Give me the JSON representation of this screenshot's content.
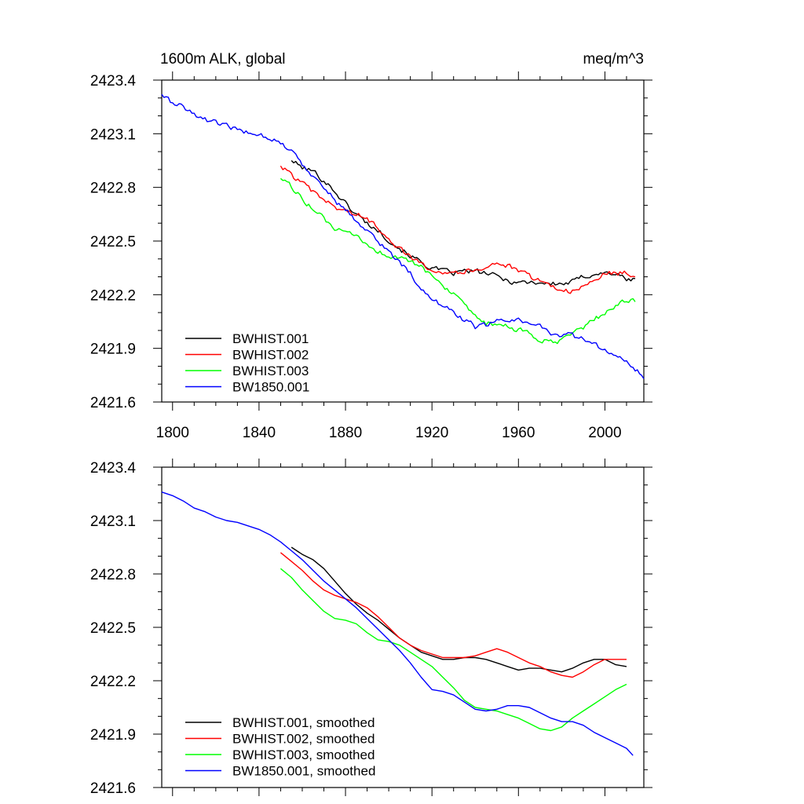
{
  "header": {
    "left_title": "1600m ALK, global",
    "right_title": "meq/m^3"
  },
  "colors": {
    "BWHIST.001": "#000000",
    "BWHIST.002": "#ff0000",
    "BWHIST.003": "#00ff00",
    "BW1850.001": "#0000ff"
  },
  "chart_data": [
    {
      "type": "line",
      "title": "1600m ALK, global",
      "units": "meq/m^3",
      "xlim": [
        1795,
        2018
      ],
      "ylim": [
        2421.6,
        2423.4
      ],
      "x_ticks": [
        1800,
        1840,
        1880,
        1920,
        1960,
        2000
      ],
      "y_ticks": [
        2421.6,
        2421.9,
        2422.2,
        2422.5,
        2422.8,
        2423.1,
        2423.4
      ],
      "y_tick_labels": [
        "2421.6",
        "2421.9",
        "2422.2",
        "2422.5",
        "2422.8",
        "2423.1",
        "2423.4"
      ],
      "x_tick_labels": [
        "1800",
        "1840",
        "1880",
        "1920",
        "1960",
        "2000"
      ],
      "legend_position": "bottom-left",
      "noisy": true,
      "series": [
        {
          "name": "BWHIST.001",
          "color": "#000000",
          "x": [
            1855,
            1860,
            1865,
            1870,
            1875,
            1880,
            1885,
            1890,
            1895,
            1900,
            1905,
            1910,
            1915,
            1920,
            1925,
            1930,
            1935,
            1940,
            1945,
            1950,
            1955,
            1960,
            1965,
            1970,
            1975,
            1980,
            1985,
            1990,
            1995,
            2000,
            2005,
            2010,
            2014
          ],
          "y": [
            2422.95,
            2422.91,
            2422.89,
            2422.84,
            2422.78,
            2422.71,
            2422.65,
            2422.6,
            2422.56,
            2422.51,
            2422.46,
            2422.42,
            2422.38,
            2422.35,
            2422.33,
            2422.32,
            2422.33,
            2422.33,
            2422.32,
            2422.3,
            2422.28,
            2422.27,
            2422.27,
            2422.27,
            2422.26,
            2422.26,
            2422.27,
            2422.3,
            2422.32,
            2422.32,
            2422.32,
            2422.28,
            2422.29
          ]
        },
        {
          "name": "BWHIST.002",
          "color": "#ff0000",
          "x": [
            1850,
            1855,
            1860,
            1865,
            1870,
            1875,
            1880,
            1885,
            1890,
            1895,
            1900,
            1905,
            1910,
            1915,
            1920,
            1925,
            1930,
            1935,
            1940,
            1945,
            1950,
            1955,
            1960,
            1965,
            1970,
            1975,
            1980,
            1985,
            1990,
            1995,
            2000,
            2005,
            2010,
            2014
          ],
          "y": [
            2422.92,
            2422.87,
            2422.82,
            2422.77,
            2422.73,
            2422.69,
            2422.67,
            2422.65,
            2422.62,
            2422.58,
            2422.52,
            2422.46,
            2422.41,
            2422.37,
            2422.35,
            2422.33,
            2422.33,
            2422.33,
            2422.34,
            2422.36,
            2422.38,
            2422.36,
            2422.33,
            2422.3,
            2422.28,
            2422.25,
            2422.23,
            2422.22,
            2422.24,
            2422.28,
            2422.32,
            2422.32,
            2422.32,
            2422.3
          ]
        },
        {
          "name": "BWHIST.003",
          "color": "#00ff00",
          "x": [
            1850,
            1855,
            1860,
            1865,
            1870,
            1875,
            1880,
            1885,
            1890,
            1895,
            1900,
            1905,
            1910,
            1915,
            1920,
            1925,
            1930,
            1935,
            1940,
            1945,
            1950,
            1955,
            1960,
            1965,
            1970,
            1975,
            1980,
            1985,
            1990,
            1995,
            2000,
            2005,
            2010,
            2014
          ],
          "y": [
            2422.85,
            2422.8,
            2422.74,
            2422.68,
            2422.62,
            2422.57,
            2422.54,
            2422.52,
            2422.48,
            2422.44,
            2422.42,
            2422.41,
            2422.38,
            2422.35,
            2422.31,
            2422.26,
            2422.2,
            2422.13,
            2422.07,
            2422.04,
            2422.03,
            2422.02,
            2422.0,
            2421.98,
            2421.95,
            2421.93,
            2421.94,
            2421.98,
            2422.02,
            2422.06,
            2422.1,
            2422.14,
            2422.17,
            2422.16
          ]
        },
        {
          "name": "BW1850.001",
          "color": "#0000ff",
          "x": [
            1795,
            1800,
            1805,
            1810,
            1815,
            1820,
            1825,
            1830,
            1835,
            1840,
            1845,
            1850,
            1855,
            1860,
            1865,
            1870,
            1875,
            1880,
            1885,
            1890,
            1895,
            1900,
            1905,
            1910,
            1915,
            1920,
            1925,
            1930,
            1935,
            1940,
            1945,
            1950,
            1955,
            1960,
            1965,
            1970,
            1975,
            1980,
            1985,
            1990,
            1995,
            2000,
            2005,
            2010,
            2015,
            2018
          ],
          "y": [
            2423.32,
            2423.27,
            2423.25,
            2423.21,
            2423.18,
            2423.16,
            2423.14,
            2423.12,
            2423.11,
            2423.1,
            2423.08,
            2423.05,
            2423.0,
            2422.93,
            2422.87,
            2422.8,
            2422.73,
            2422.67,
            2422.62,
            2422.56,
            2422.5,
            2422.44,
            2422.38,
            2422.32,
            2422.24,
            2422.16,
            2422.14,
            2422.11,
            2422.06,
            2422.02,
            2422.03,
            2422.05,
            2422.06,
            2422.06,
            2422.05,
            2422.02,
            2421.99,
            2421.98,
            2421.97,
            2421.95,
            2421.92,
            2421.89,
            2421.86,
            2421.82,
            2421.77,
            2421.73
          ]
        }
      ]
    },
    {
      "type": "line",
      "xlim": [
        1795,
        2018
      ],
      "ylim": [
        2421.6,
        2423.4
      ],
      "y_ticks": [
        2421.6,
        2421.9,
        2422.2,
        2422.5,
        2422.8,
        2423.1,
        2423.4
      ],
      "y_tick_labels": [
        "2421.6",
        "2421.9",
        "2422.2",
        "2422.5",
        "2422.8",
        "2423.1",
        "2423.4"
      ],
      "x_ticks": [
        1800,
        1840,
        1880,
        1920,
        1960,
        2000
      ],
      "legend_position": "bottom-left",
      "noisy": false,
      "series": [
        {
          "name": "BWHIST.001, smoothed",
          "color": "#000000",
          "x": [
            1855,
            1860,
            1865,
            1870,
            1875,
            1880,
            1885,
            1890,
            1895,
            1900,
            1905,
            1910,
            1915,
            1920,
            1925,
            1930,
            1935,
            1940,
            1945,
            1950,
            1955,
            1960,
            1965,
            1970,
            1975,
            1980,
            1985,
            1990,
            1995,
            2000,
            2005,
            2010
          ],
          "y": [
            2422.95,
            2422.91,
            2422.88,
            2422.83,
            2422.76,
            2422.69,
            2422.63,
            2422.58,
            2422.54,
            2422.49,
            2422.44,
            2422.4,
            2422.36,
            2422.34,
            2422.32,
            2422.32,
            2422.33,
            2422.33,
            2422.32,
            2422.3,
            2422.28,
            2422.26,
            2422.27,
            2422.27,
            2422.26,
            2422.25,
            2422.27,
            2422.3,
            2422.32,
            2422.32,
            2422.29,
            2422.28
          ]
        },
        {
          "name": "BWHIST.002, smoothed",
          "color": "#ff0000",
          "x": [
            1850,
            1855,
            1860,
            1865,
            1870,
            1875,
            1880,
            1885,
            1890,
            1895,
            1900,
            1905,
            1910,
            1915,
            1920,
            1925,
            1930,
            1935,
            1940,
            1945,
            1950,
            1955,
            1960,
            1965,
            1970,
            1975,
            1980,
            1985,
            1990,
            1995,
            2000,
            2005,
            2010
          ],
          "y": [
            2422.92,
            2422.87,
            2422.82,
            2422.76,
            2422.71,
            2422.68,
            2422.66,
            2422.64,
            2422.61,
            2422.56,
            2422.5,
            2422.44,
            2422.4,
            2422.37,
            2422.35,
            2422.33,
            2422.33,
            2422.33,
            2422.34,
            2422.36,
            2422.38,
            2422.36,
            2422.33,
            2422.3,
            2422.28,
            2422.25,
            2422.23,
            2422.22,
            2422.25,
            2422.29,
            2422.32,
            2422.32,
            2422.32
          ]
        },
        {
          "name": "BWHIST.003, smoothed",
          "color": "#00ff00",
          "x": [
            1850,
            1855,
            1860,
            1865,
            1870,
            1875,
            1880,
            1885,
            1890,
            1895,
            1900,
            1905,
            1910,
            1915,
            1920,
            1925,
            1930,
            1935,
            1940,
            1945,
            1950,
            1955,
            1960,
            1965,
            1970,
            1975,
            1980,
            1985,
            1990,
            1995,
            2000,
            2005,
            2010
          ],
          "y": [
            2422.83,
            2422.78,
            2422.71,
            2422.65,
            2422.59,
            2422.55,
            2422.54,
            2422.52,
            2422.47,
            2422.43,
            2422.42,
            2422.4,
            2422.36,
            2422.32,
            2422.28,
            2422.22,
            2422.16,
            2422.09,
            2422.05,
            2422.04,
            2422.03,
            2422.01,
            2421.99,
            2421.96,
            2421.93,
            2421.92,
            2421.94,
            2421.99,
            2422.03,
            2422.07,
            2422.11,
            2422.15,
            2422.18
          ]
        },
        {
          "name": "BW1850.001, smoothed",
          "color": "#0000ff",
          "x": [
            1795,
            1800,
            1805,
            1810,
            1815,
            1820,
            1825,
            1830,
            1835,
            1840,
            1845,
            1850,
            1855,
            1860,
            1865,
            1870,
            1875,
            1880,
            1885,
            1890,
            1895,
            1900,
            1905,
            1910,
            1915,
            1920,
            1925,
            1930,
            1935,
            1940,
            1945,
            1950,
            1955,
            1960,
            1965,
            1970,
            1975,
            1980,
            1985,
            1990,
            1995,
            2000,
            2005,
            2010,
            2013
          ],
          "y": [
            2423.26,
            2423.24,
            2423.21,
            2423.17,
            2423.15,
            2423.12,
            2423.1,
            2423.09,
            2423.07,
            2423.05,
            2423.02,
            2422.98,
            2422.93,
            2422.88,
            2422.82,
            2422.76,
            2422.71,
            2422.66,
            2422.61,
            2422.55,
            2422.49,
            2422.43,
            2422.37,
            2422.3,
            2422.22,
            2422.15,
            2422.14,
            2422.12,
            2422.08,
            2422.04,
            2422.03,
            2422.04,
            2422.06,
            2422.06,
            2422.05,
            2422.02,
            2421.99,
            2421.97,
            2421.97,
            2421.95,
            2421.91,
            2421.88,
            2421.85,
            2421.82,
            2421.78
          ]
        }
      ]
    }
  ]
}
